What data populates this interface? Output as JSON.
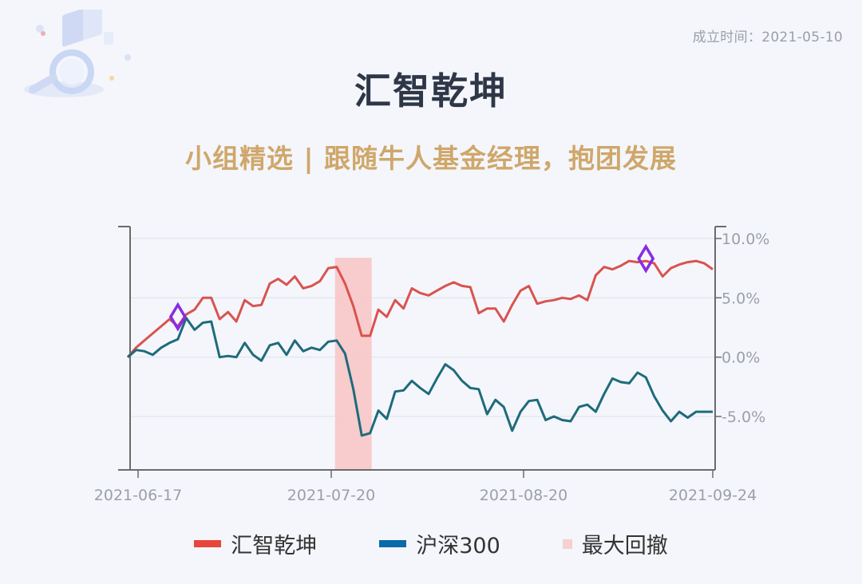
{
  "header": {
    "founded_label": "成立时间：2021-05-10",
    "title": "汇智乾坤",
    "subtitle": "小组精选 | 跟随牛人基金经理，抱团发展"
  },
  "icons": {
    "logo": "search-magnifier-illustration-icon"
  },
  "colors": {
    "fund": "#d9534f",
    "index": "#1e6b7b",
    "drawdown": "#f8c7c7",
    "marker": "#8a2be2",
    "legend_fund": "#e8463a",
    "legend_index": "#0b6aa8",
    "legend_drawdown": "#f7d0d0"
  },
  "chart_data": {
    "type": "line",
    "x_ticks": [
      "2021-06-17",
      "2021-07-20",
      "2021-08-20",
      "2021-09-24"
    ],
    "x": [
      "2021-06-16",
      "2021-06-17",
      "2021-06-18",
      "2021-06-21",
      "2021-06-22",
      "2021-06-23",
      "2021-06-24",
      "2021-06-25",
      "2021-06-28",
      "2021-06-29",
      "2021-06-30",
      "2021-07-01",
      "2021-07-02",
      "2021-07-05",
      "2021-07-06",
      "2021-07-07",
      "2021-07-08",
      "2021-07-09",
      "2021-07-12",
      "2021-07-13",
      "2021-07-14",
      "2021-07-15",
      "2021-07-16",
      "2021-07-19",
      "2021-07-20",
      "2021-07-21",
      "2021-07-22",
      "2021-07-23",
      "2021-07-26",
      "2021-07-27",
      "2021-07-28",
      "2021-07-29",
      "2021-07-30",
      "2021-08-02",
      "2021-08-03",
      "2021-08-04",
      "2021-08-05",
      "2021-08-06",
      "2021-08-09",
      "2021-08-10",
      "2021-08-11",
      "2021-08-12",
      "2021-08-13",
      "2021-08-16",
      "2021-08-17",
      "2021-08-18",
      "2021-08-19",
      "2021-08-20",
      "2021-08-23",
      "2021-08-24",
      "2021-08-25",
      "2021-08-26",
      "2021-08-27",
      "2021-08-30",
      "2021-08-31",
      "2021-09-01",
      "2021-09-02",
      "2021-09-03",
      "2021-09-06",
      "2021-09-07",
      "2021-09-08",
      "2021-09-09",
      "2021-09-10",
      "2021-09-13",
      "2021-09-14",
      "2021-09-15",
      "2021-09-16",
      "2021-09-17",
      "2021-09-22",
      "2021-09-23",
      "2021-09-24"
    ],
    "series": [
      {
        "name": "汇智乾坤",
        "values": [
          0.0,
          0.8,
          1.4,
          2.0,
          2.6,
          3.2,
          2.6,
          3.6,
          4.0,
          5.0,
          5.0,
          3.2,
          3.8,
          3.0,
          4.8,
          4.3,
          4.4,
          6.2,
          6.6,
          6.1,
          6.8,
          5.8,
          6.0,
          6.4,
          7.5,
          7.6,
          6.2,
          4.3,
          1.8,
          1.8,
          4.0,
          3.4,
          4.8,
          4.1,
          5.8,
          5.4,
          5.2,
          5.6,
          6.0,
          6.3,
          6.0,
          5.9,
          3.7,
          4.1,
          4.1,
          3.0,
          4.4,
          5.6,
          6.0,
          4.5,
          4.7,
          4.8,
          5.0,
          4.9,
          5.2,
          4.8,
          6.9,
          7.6,
          7.4,
          7.7,
          8.1,
          8.0,
          8.1,
          7.9,
          6.8,
          7.5,
          7.8,
          8.0,
          8.1,
          7.9,
          7.4
        ]
      },
      {
        "name": "沪深300",
        "values": [
          0.0,
          0.6,
          0.5,
          0.2,
          0.8,
          1.2,
          1.5,
          3.3,
          2.3,
          2.9,
          3.0,
          0.0,
          0.1,
          0.0,
          1.2,
          0.2,
          -0.3,
          1.0,
          1.2,
          0.2,
          1.4,
          0.5,
          0.8,
          0.6,
          1.3,
          1.4,
          0.3,
          -2.7,
          -6.6,
          -6.4,
          -4.5,
          -5.2,
          -2.9,
          -2.8,
          -2.0,
          -2.6,
          -3.1,
          -1.8,
          -0.6,
          -1.1,
          -2.0,
          -2.6,
          -2.7,
          -4.8,
          -3.6,
          -4.2,
          -6.2,
          -4.6,
          -3.7,
          -3.6,
          -5.3,
          -5.0,
          -5.3,
          -5.4,
          -4.2,
          -4.0,
          -4.6,
          -3.1,
          -1.8,
          -2.1,
          -2.2,
          -1.3,
          -1.7,
          -3.3,
          -4.5,
          -5.4,
          -4.6,
          -5.1,
          -4.6,
          -4.6,
          -4.6
        ]
      }
    ],
    "legend": [
      {
        "label": "汇智乾坤",
        "color": "#e8463a"
      },
      {
        "label": "沪深300",
        "color": "#0b6aa8"
      },
      {
        "label": "最大回撤",
        "color": "#f7d0d0"
      }
    ],
    "y_ticks": [
      "10.0%",
      "5.0%",
      "0.0%",
      "-5.0%"
    ],
    "y_tick_values": [
      10,
      5,
      0,
      -5
    ],
    "ylim": [
      -9.5,
      11.0
    ],
    "drawdown": {
      "label": "最大回撤",
      "start": "2021-07-21",
      "end": "2021-07-27"
    },
    "markers": [
      {
        "x": "2021-06-24",
        "y": 3.4
      },
      {
        "x": "2021-09-10",
        "y": 8.3
      }
    ],
    "grid": true,
    "legend_position": "bottom",
    "yaxis_position": "right"
  }
}
